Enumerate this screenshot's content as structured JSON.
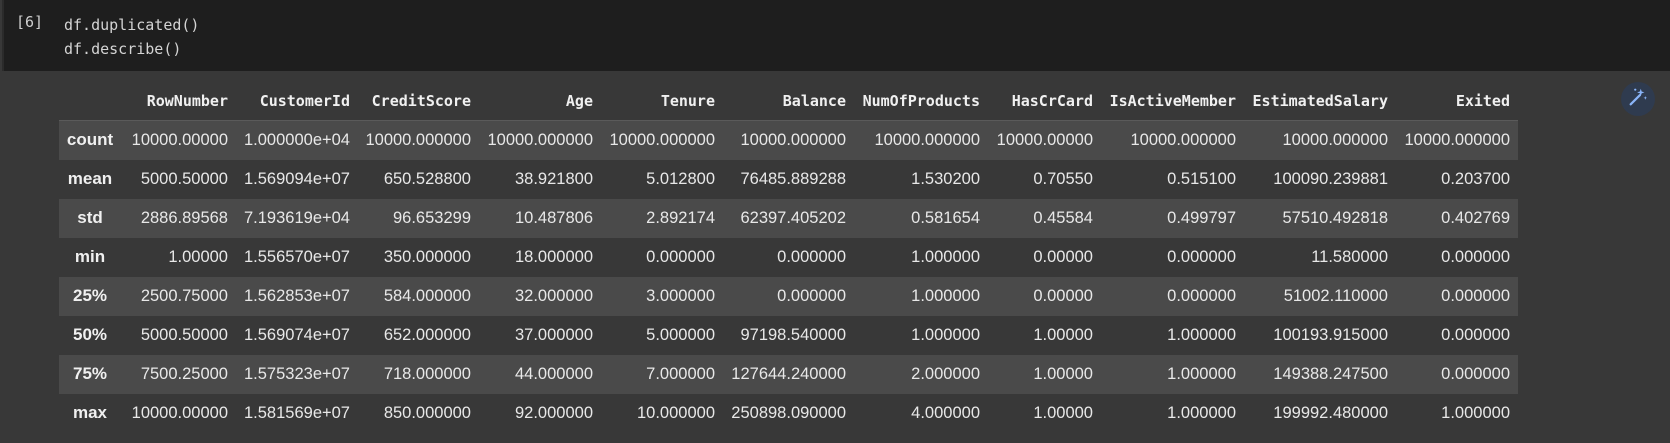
{
  "cell": {
    "execution_count": "[6]",
    "code_lines": [
      "df.duplicated()",
      "df.describe()"
    ]
  },
  "table": {
    "columns": [
      "RowNumber",
      "CustomerId",
      "CreditScore",
      "Age",
      "Tenure",
      "Balance",
      "NumOfProducts",
      "HasCrCard",
      "IsActiveMember",
      "EstimatedSalary",
      "Exited"
    ],
    "rows": [
      {
        "label": "count",
        "values": [
          "10000.00000",
          "1.000000e+04",
          "10000.000000",
          "10000.000000",
          "10000.000000",
          "10000.000000",
          "10000.000000",
          "10000.00000",
          "10000.000000",
          "10000.000000",
          "10000.000000"
        ]
      },
      {
        "label": "mean",
        "values": [
          "5000.50000",
          "1.569094e+07",
          "650.528800",
          "38.921800",
          "5.012800",
          "76485.889288",
          "1.530200",
          "0.70550",
          "0.515100",
          "100090.239881",
          "0.203700"
        ]
      },
      {
        "label": "std",
        "values": [
          "2886.89568",
          "7.193619e+04",
          "96.653299",
          "10.487806",
          "2.892174",
          "62397.405202",
          "0.581654",
          "0.45584",
          "0.499797",
          "57510.492818",
          "0.402769"
        ]
      },
      {
        "label": "min",
        "values": [
          "1.00000",
          "1.556570e+07",
          "350.000000",
          "18.000000",
          "0.000000",
          "0.000000",
          "1.000000",
          "0.00000",
          "0.000000",
          "11.580000",
          "0.000000"
        ]
      },
      {
        "label": "25%",
        "values": [
          "2500.75000",
          "1.562853e+07",
          "584.000000",
          "32.000000",
          "3.000000",
          "0.000000",
          "1.000000",
          "0.00000",
          "0.000000",
          "51002.110000",
          "0.000000"
        ]
      },
      {
        "label": "50%",
        "values": [
          "5000.50000",
          "1.569074e+07",
          "652.000000",
          "37.000000",
          "5.000000",
          "97198.540000",
          "1.000000",
          "1.00000",
          "1.000000",
          "100193.915000",
          "0.000000"
        ]
      },
      {
        "label": "75%",
        "values": [
          "7500.25000",
          "1.575323e+07",
          "718.000000",
          "44.000000",
          "7.000000",
          "127644.240000",
          "2.000000",
          "1.00000",
          "1.000000",
          "149388.247500",
          "0.000000"
        ]
      },
      {
        "label": "max",
        "values": [
          "10000.00000",
          "1.581569e+07",
          "850.000000",
          "92.000000",
          "10.000000",
          "250898.090000",
          "4.000000",
          "1.00000",
          "1.000000",
          "199992.480000",
          "1.000000"
        ]
      }
    ]
  },
  "icons": {
    "magic": "magic-wand-icon",
    "accent": "#8ab4f8"
  }
}
